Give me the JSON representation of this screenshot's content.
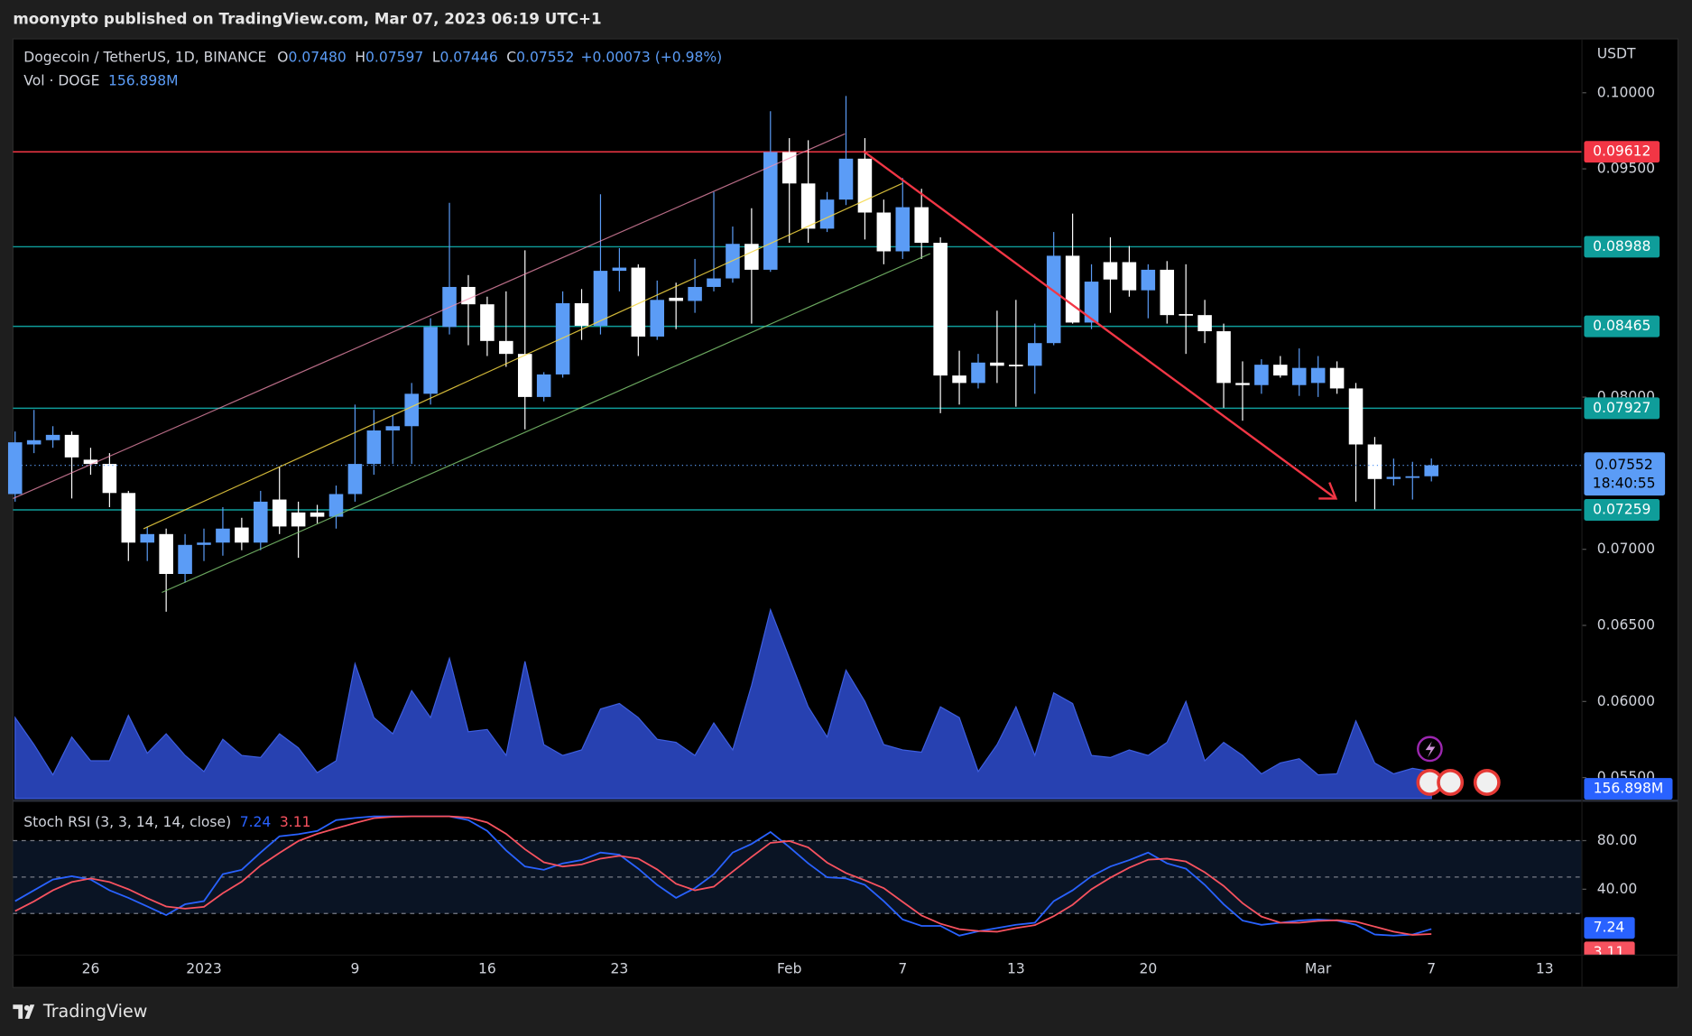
{
  "publisher": "moonypto published on TradingView.com, Mar 07, 2023 06:19 UTC+1",
  "footer": {
    "brand": "TradingView"
  },
  "chart_data": {
    "type": "candlestick",
    "header": {
      "symbol": "Dogecoin / TetherUS, 1D, BINANCE",
      "ohlc": [
        {
          "label": "O",
          "value": "0.07480"
        },
        {
          "label": "H",
          "value": "0.07597"
        },
        {
          "label": "L",
          "value": "0.07446"
        },
        {
          "label": "C",
          "value": "0.07552"
        }
      ],
      "change": "+0.00073 (+0.98%)"
    },
    "y_axis_label": "USDT",
    "countdown": "18:40:55",
    "up_color": "#5b9cf6",
    "down_color": "#ffffff",
    "grid": false,
    "ylim": [
      0.05362,
      0.1034
    ],
    "yticks": [
      {
        "value": 0.055,
        "label": "0.05500"
      },
      {
        "value": 0.06,
        "label": "0.06000"
      },
      {
        "value": 0.065,
        "label": "0.06500"
      },
      {
        "value": 0.07,
        "label": "0.07000"
      },
      {
        "value": 0.08,
        "label": "0.08000"
      },
      {
        "value": 0.095,
        "label": "0.09500"
      },
      {
        "value": 0.1,
        "label": "0.10000"
      }
    ],
    "categories": [
      null,
      null,
      null,
      null,
      "26",
      null,
      null,
      null,
      null,
      null,
      "2023",
      null,
      null,
      null,
      null,
      null,
      null,
      null,
      "9",
      null,
      null,
      null,
      null,
      null,
      null,
      "16",
      null,
      null,
      null,
      null,
      null,
      null,
      "23",
      null,
      null,
      null,
      null,
      null,
      null,
      null,
      null,
      "Feb",
      null,
      null,
      null,
      null,
      null,
      "7",
      null,
      null,
      null,
      null,
      null,
      "13",
      null,
      null,
      null,
      null,
      null,
      null,
      "20",
      null,
      null,
      null,
      null,
      null,
      null,
      null,
      null,
      "Mar",
      null,
      null,
      null,
      null,
      null,
      "7",
      null,
      null,
      null,
      null,
      null,
      "13"
    ],
    "open": [
      0.07363,
      0.07689,
      0.07717,
      0.07752,
      0.07589,
      0.07561,
      0.0737,
      0.07044,
      0.071,
      0.06838,
      0.07029,
      0.07044,
      0.07143,
      0.07044,
      0.07327,
      0.07242,
      0.07242,
      0.07214,
      0.07363,
      0.07561,
      0.07781,
      0.07809,
      0.08022,
      0.08461,
      0.08724,
      0.0861,
      0.08369,
      0.08284,
      0.08001,
      0.08149,
      0.08617,
      0.08469,
      0.0883,
      0.08851,
      0.08398,
      0.08653,
      0.08632,
      0.08724,
      0.0878,
      0.09007,
      0.08837,
      0.0961,
      0.09404,
      0.09107,
      0.09298,
      0.09567,
      0.09213,
      0.08958,
      0.09248,
      0.09014,
      0.08142,
      0.08093,
      0.08227,
      0.08213,
      0.08206,
      0.08355,
      0.08929,
      0.0849,
      0.08887,
      0.08887,
      0.08702,
      0.08837,
      0.08546,
      0.08539,
      0.08433,
      0.08093,
      0.08079,
      0.08213,
      0.08079,
      0.08093,
      0.08192,
      0.08057,
      0.07689,
      0.07462,
      0.07476,
      0.0748,
      null,
      null,
      null,
      null,
      null,
      null
    ],
    "high": [
      0.07774,
      0.07916,
      0.07809,
      0.07774,
      0.07667,
      0.07632,
      0.07384,
      0.0715,
      0.07136,
      0.071,
      0.07136,
      0.07277,
      0.07207,
      0.07384,
      0.0754,
      0.07313,
      0.07292,
      0.07419,
      0.07951,
      0.07916,
      0.0788,
      0.08093,
      0.08518,
      0.09277,
      0.08802,
      0.0866,
      0.08695,
      0.08965,
      0.08164,
      0.08695,
      0.0871,
      0.09333,
      0.08979,
      0.08873,
      0.08766,
      0.08752,
      0.08908,
      0.09348,
      0.09121,
      0.09241,
      0.09879,
      0.09702,
      0.09688,
      0.09348,
      0.09979,
      0.09702,
      0.09298,
      0.0944,
      0.09369,
      0.0905,
      0.08305,
      0.08284,
      0.08568,
      0.08639,
      0.08483,
      0.09085,
      0.09206,
      0.08873,
      0.0905,
      0.08993,
      0.08873,
      0.08894,
      0.08873,
      0.08639,
      0.08483,
      0.08235,
      0.08249,
      0.0827,
      0.0832,
      0.0827,
      0.08235,
      0.08093,
      0.07738,
      0.07596,
      0.07575,
      0.07597,
      null,
      null,
      null,
      null,
      null,
      null
    ],
    "low": [
      0.07313,
      0.07632,
      0.07667,
      0.07334,
      0.0749,
      0.07277,
      0.06923,
      0.06923,
      0.0659,
      0.06781,
      0.06923,
      0.06958,
      0.06994,
      0.06994,
      0.071,
      0.06944,
      0.07171,
      0.07136,
      0.07313,
      0.0749,
      0.07561,
      0.07561,
      0.07951,
      0.08412,
      0.08341,
      0.0827,
      0.08199,
      0.07788,
      0.07972,
      0.08128,
      0.08376,
      0.08412,
      0.08695,
      0.0827,
      0.08376,
      0.08447,
      0.08554,
      0.08695,
      0.08752,
      0.08483,
      0.08823,
      0.09014,
      0.09014,
      0.09085,
      0.09262,
      0.09036,
      0.08873,
      0.08908,
      0.08908,
      0.07894,
      0.07951,
      0.08057,
      0.08093,
      0.07937,
      0.08022,
      0.08341,
      0.08483,
      0.08447,
      0.08554,
      0.0866,
      0.08518,
      0.08483,
      0.08284,
      0.08355,
      0.0793,
      0.07845,
      0.08022,
      0.08128,
      0.08008,
      0.08001,
      0.08022,
      0.07313,
      0.07263,
      0.07419,
      0.07327,
      0.07446,
      null,
      null,
      null,
      null,
      null,
      null
    ],
    "close": [
      0.07703,
      0.07717,
      0.07752,
      0.07604,
      0.07561,
      0.0737,
      0.07044,
      0.071,
      0.06838,
      0.07029,
      0.07044,
      0.07136,
      0.07044,
      0.07313,
      0.0715,
      0.0715,
      0.07214,
      0.07363,
      0.07561,
      0.07781,
      0.07809,
      0.08022,
      0.08461,
      0.08724,
      0.0861,
      0.08369,
      0.08284,
      0.08001,
      0.08149,
      0.08617,
      0.08469,
      0.0883,
      0.08851,
      0.08398,
      0.08639,
      0.08632,
      0.08724,
      0.0878,
      0.09007,
      0.08837,
      0.0961,
      0.09404,
      0.09107,
      0.09298,
      0.09567,
      0.09213,
      0.08958,
      0.09248,
      0.09014,
      0.08142,
      0.08093,
      0.08227,
      0.08206,
      0.08206,
      0.08355,
      0.08929,
      0.0849,
      0.08759,
      0.08773,
      0.08702,
      0.08837,
      0.08539,
      0.08539,
      0.08433,
      0.08093,
      0.08079,
      0.08213,
      0.08142,
      0.08192,
      0.08192,
      0.08057,
      0.07689,
      0.07462,
      0.07476,
      0.0748,
      0.07552,
      null,
      null,
      null,
      null,
      null,
      null
    ],
    "levels": [
      {
        "value": 0.09612,
        "color": "#f23645"
      },
      {
        "value": 0.08988,
        "color": "#0f9d9a"
      },
      {
        "value": 0.08465,
        "color": "#0f9d9a"
      },
      {
        "value": 0.07927,
        "color": "#0f9d9a"
      },
      {
        "value": 0.07259,
        "color": "#0f9d9a"
      }
    ],
    "volume": {
      "label": "Vol · DOGE",
      "legend_value": "156.898M",
      "color": "#2b48c4",
      "ylim": [
        0,
        1400
      ],
      "values": [
        471,
        314,
        138,
        358,
        220,
        220,
        484,
        264,
        377,
        251,
        157,
        345,
        251,
        239,
        377,
        295,
        151,
        220,
        785,
        471,
        377,
        628,
        471,
        816,
        389,
        402,
        251,
        798,
        314,
        251,
        283,
        521,
        553,
        471,
        345,
        327,
        251,
        440,
        283,
        659,
        1099,
        816,
        534,
        358,
        747,
        565,
        314,
        283,
        270,
        534,
        471,
        157,
        314,
        534,
        251,
        615,
        553,
        251,
        239,
        283,
        251,
        327,
        565,
        220,
        327,
        251,
        144,
        207,
        232,
        138,
        144,
        452,
        207,
        144,
        176,
        156.898,
        null,
        null,
        null,
        null,
        null,
        null
      ]
    },
    "stoch": {
      "title": "Stoch RSI (3, 3, 14, 14, close)",
      "ylim": [
        -14.2,
        110.2
      ],
      "yticks": [
        {
          "value": 40,
          "label": "40.00"
        },
        {
          "value": 80,
          "label": "80.00"
        }
      ],
      "levels": [
        20,
        50,
        80
      ],
      "series": [
        {
          "color": "#2962ff",
          "values": [
            30.2,
            39.1,
            48.0,
            50.7,
            48.0,
            39.1,
            32.9,
            25.8,
            18.7,
            27.6,
            30.2,
            52.4,
            56.0,
            70.2,
            83.6,
            85.3,
            88.0,
            96.9,
            98.7,
            100,
            100,
            100,
            100,
            100,
            96.9,
            88.0,
            72.0,
            58.7,
            56.0,
            61.3,
            64.0,
            70.2,
            68.4,
            56.9,
            43.6,
            32.9,
            40.9,
            52.4,
            70.2,
            77.3,
            87.1,
            74.7,
            61.3,
            49.8,
            48.9,
            43.6,
            30.2,
            15.1,
            9.8,
            9.8,
            1.8,
            5.3,
            8.0,
            10.7,
            12.4,
            30.2,
            39.1,
            50.7,
            58.7,
            64.0,
            70.2,
            61.3,
            56.9,
            43.6,
            27.6,
            14.2,
            10.7,
            12.4,
            14.2,
            15.1,
            14.2,
            10.7,
            2.7,
            1.8,
            2.7,
            7.24,
            null,
            null,
            null,
            null,
            null,
            null
          ]
        },
        {
          "color": "#f7525f",
          "values": [
            22.0,
            30.0,
            39.1,
            45.9,
            48.9,
            45.9,
            40.0,
            32.6,
            25.8,
            24.0,
            25.5,
            36.7,
            46.2,
            59.5,
            69.9,
            79.7,
            85.6,
            90.1,
            94.5,
            98.5,
            99.6,
            100,
            100,
            100,
            99.0,
            95.0,
            85.6,
            72.9,
            62.2,
            58.7,
            60.4,
            65.2,
            67.5,
            65.2,
            56.3,
            44.5,
            39.1,
            42.1,
            54.5,
            66.6,
            78.2,
            79.7,
            74.4,
            61.9,
            53.3,
            47.4,
            40.9,
            29.6,
            18.4,
            11.6,
            7.1,
            5.6,
            5.0,
            8.0,
            10.4,
            17.8,
            27.2,
            40.0,
            49.5,
            57.8,
            64.3,
            65.2,
            62.8,
            53.9,
            42.7,
            28.5,
            17.5,
            12.4,
            12.4,
            13.9,
            14.5,
            13.3,
            9.2,
            5.1,
            2.4,
            3.11,
            null,
            null,
            null,
            null,
            null,
            null
          ]
        }
      ]
    }
  }
}
